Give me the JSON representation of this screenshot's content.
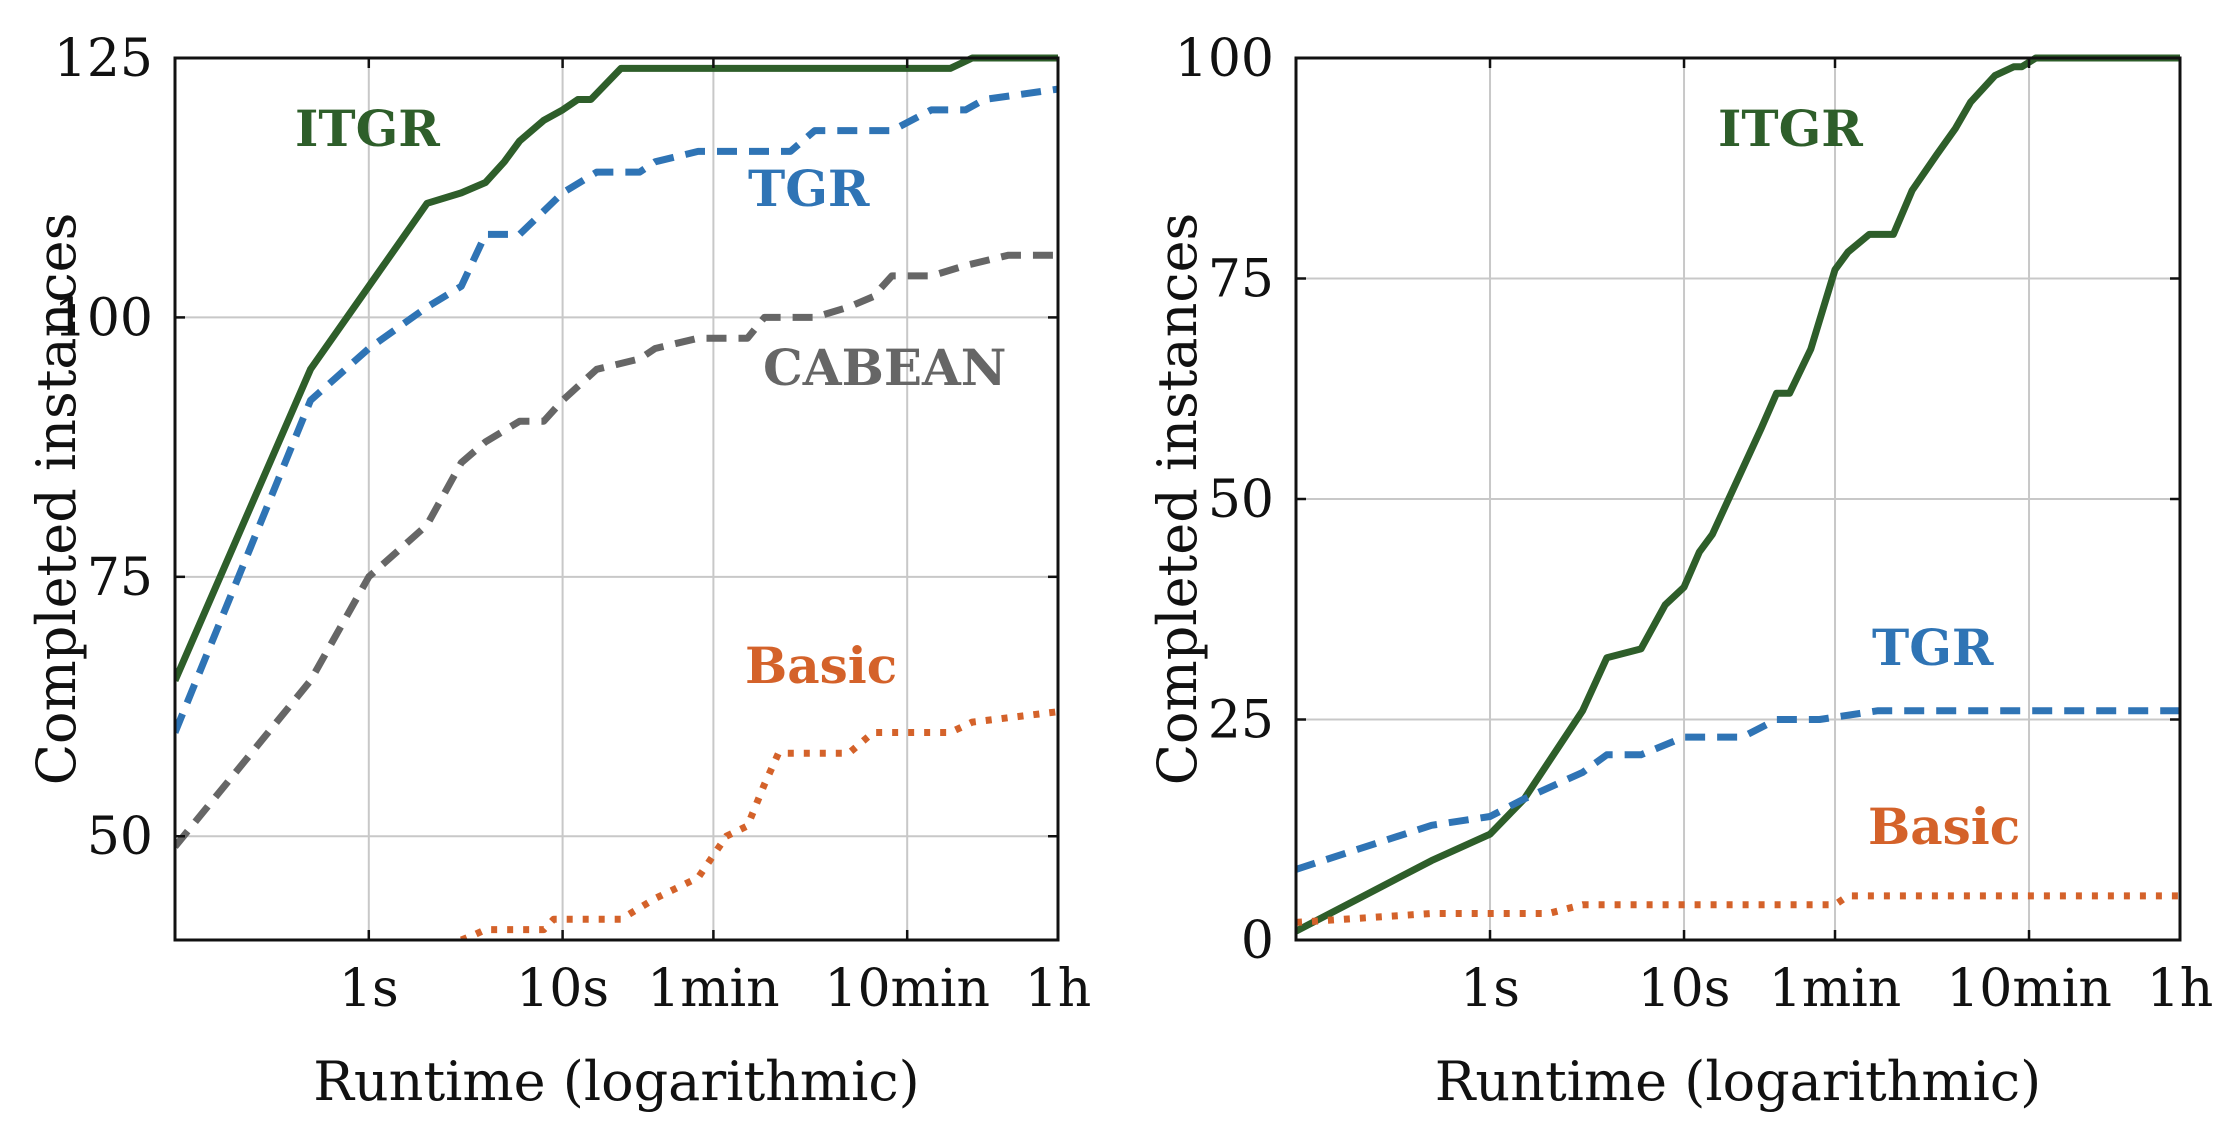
{
  "chart_data": [
    {
      "type": "line",
      "title": "",
      "xlabel": "Runtime (logarithmic)",
      "ylabel": "Completed instances",
      "x_scale": "log",
      "x_unit": "seconds",
      "xlim": [
        0.1,
        3600
      ],
      "ylim": [
        40,
        125
      ],
      "xticks": [
        1,
        10,
        60,
        600,
        3600
      ],
      "xtick_labels": [
        "1s",
        "10s",
        "1min",
        "10min",
        "1h"
      ],
      "yticks": [
        50,
        75,
        100,
        125
      ],
      "ytick_labels": [
        "50",
        "75",
        "100",
        "125"
      ],
      "grid": true,
      "series": [
        {
          "name": "ITGR",
          "color": "#2e5e2a",
          "style": "solid",
          "x": [
            0.1,
            0.5,
            2,
            3,
            4,
            5,
            6,
            8,
            10,
            12,
            14,
            20,
            1000,
            1300,
            3600
          ],
          "y": [
            65,
            95,
            111,
            112,
            113,
            115,
            117,
            119,
            120,
            121,
            121,
            124,
            124,
            125,
            125
          ]
        },
        {
          "name": "TGR",
          "color": "#2f74b5",
          "style": "dashed",
          "x": [
            0.1,
            0.5,
            1,
            2,
            3,
            4,
            6,
            10,
            15,
            25,
            30,
            50,
            100,
            150,
            200,
            400,
            500,
            800,
            1200,
            1500,
            3600
          ],
          "y": [
            60,
            92,
            97,
            101,
            103,
            108,
            108,
            112,
            114,
            114,
            115,
            116,
            116,
            116,
            118,
            118,
            118,
            120,
            120,
            121,
            122
          ]
        },
        {
          "name": "CABEAN",
          "color": "#666666",
          "style": "dashed",
          "x": [
            0.1,
            0.5,
            1,
            2,
            3,
            4,
            6,
            8,
            10,
            15,
            25,
            30,
            50,
            90,
            110,
            200,
            300,
            400,
            500,
            800,
            1200,
            2000,
            3600
          ],
          "y": [
            49,
            65,
            75,
            80,
            86,
            88,
            90,
            90,
            92,
            95,
            96,
            97,
            98,
            98,
            100,
            100,
            101,
            102,
            104,
            104,
            105,
            106,
            106
          ]
        },
        {
          "name": "Basic",
          "color": "#d4622a",
          "style": "dotted",
          "x": [
            3,
            3.5,
            4,
            8,
            9,
            20,
            30,
            50,
            70,
            90,
            110,
            130,
            150,
            300,
            400,
            500,
            1000,
            1300,
            3600
          ],
          "y": [
            40,
            40.5,
            41,
            41,
            42,
            42,
            44,
            46,
            50,
            51,
            55,
            58,
            58,
            58,
            60,
            60,
            60,
            61,
            62
          ]
        }
      ],
      "annotations": {
        "ITGR": "ITGR",
        "TGR": "TGR",
        "CABEAN": "CABEAN",
        "Basic": "Basic"
      }
    },
    {
      "type": "line",
      "title": "",
      "xlabel": "Runtime (logarithmic)",
      "ylabel": "Completed instances",
      "x_scale": "log",
      "x_unit": "seconds",
      "xlim": [
        0.1,
        3600
      ],
      "ylim": [
        0,
        100
      ],
      "xticks": [
        1,
        10,
        60,
        600,
        3600
      ],
      "xtick_labels": [
        "1s",
        "10s",
        "1min",
        "10min",
        "1h"
      ],
      "yticks": [
        0,
        25,
        50,
        75,
        100
      ],
      "ytick_labels": [
        "0",
        "25",
        "50",
        "75",
        "100"
      ],
      "grid": true,
      "series": [
        {
          "name": "ITGR",
          "color": "#2e5e2a",
          "style": "solid",
          "x": [
            0.1,
            0.5,
            1,
            1.5,
            3,
            4,
            6,
            8,
            10,
            12,
            14,
            25,
            30,
            35,
            45,
            60,
            70,
            90,
            100,
            120,
            150,
            200,
            250,
            300,
            400,
            500,
            550,
            650,
            3600
          ],
          "y": [
            1,
            9,
            12,
            16,
            26,
            32,
            33,
            38,
            40,
            44,
            46,
            58,
            62,
            62,
            67,
            76,
            78,
            80,
            80,
            80,
            85,
            89,
            92,
            95,
            98,
            99,
            99,
            100,
            100
          ]
        },
        {
          "name": "TGR",
          "color": "#2f74b5",
          "style": "dashed",
          "x": [
            0.1,
            0.5,
            1,
            1.5,
            3,
            4,
            6,
            10,
            20,
            30,
            50,
            100,
            3600
          ],
          "y": [
            8,
            13,
            14,
            16,
            19,
            21,
            21,
            23,
            23,
            25,
            25,
            26,
            26
          ]
        },
        {
          "name": "Basic",
          "color": "#d4622a",
          "style": "dotted",
          "x": [
            0.1,
            0.5,
            1,
            2,
            3,
            50,
            60,
            70,
            3600
          ],
          "y": [
            2,
            3,
            3,
            3,
            4,
            4,
            4,
            5,
            5
          ]
        }
      ],
      "annotations": {
        "ITGR": "ITGR",
        "TGR": "TGR",
        "Basic": "Basic"
      }
    }
  ]
}
